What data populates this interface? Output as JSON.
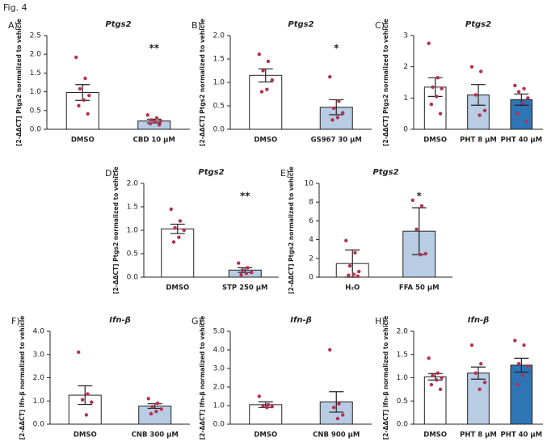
{
  "title": "Fig. 4",
  "chart_data": [
    {
      "type": "bar",
      "panel": "A)",
      "title": "Ptgs2",
      "ylabel": "[2-ΔΔCT] Ptgs2 normalized to vehicle",
      "annotation": "**",
      "categories": [
        "DMSO",
        "CBD 10 µM"
      ],
      "values": [
        0.98,
        0.22
      ],
      "errors": [
        0.21,
        0.05
      ],
      "colors": [
        "#ffffff",
        "#b8cce4"
      ],
      "points": [
        [
          1.92,
          1.36,
          1.08,
          0.9,
          0.78,
          0.63,
          0.41
        ],
        [
          0.38,
          0.3,
          0.25,
          0.22,
          0.2,
          0.15,
          0.12
        ]
      ],
      "ylim": [
        0,
        2.5
      ],
      "yticks": [
        {
          "value": 0,
          "label": "0.0"
        },
        {
          "value": 0.5,
          "label": "0.5"
        },
        {
          "value": 1,
          "label": "1.0"
        },
        {
          "value": 1.5,
          "label": "1.5"
        },
        {
          "value": 2,
          "label": "2.0"
        },
        {
          "value": 2.5,
          "label": "2.5"
        }
      ]
    },
    {
      "type": "bar",
      "panel": "B)",
      "title": "Ptgs2",
      "ylabel": "[2-ΔΔCT] Ptgs2 normalized to vehicle",
      "annotation": "*",
      "categories": [
        "DMSO",
        "GS967 30 µM"
      ],
      "values": [
        1.15,
        0.47
      ],
      "errors": [
        0.14,
        0.16
      ],
      "colors": [
        "#ffffff",
        "#b8cce4"
      ],
      "points": [
        [
          1.6,
          1.45,
          1.25,
          1.05,
          0.85,
          0.8
        ],
        [
          1.12,
          0.6,
          0.45,
          0.35,
          0.25,
          0.2
        ]
      ],
      "ylim": [
        0,
        2
      ],
      "yticks": [
        {
          "value": 0,
          "label": "0.0"
        },
        {
          "value": 0.5,
          "label": "0.5"
        },
        {
          "value": 1,
          "label": "1.0"
        },
        {
          "value": 1.5,
          "label": "1.5"
        },
        {
          "value": 2,
          "label": "2.0"
        }
      ]
    },
    {
      "type": "bar",
      "panel": "C)",
      "title": "Ptgs2",
      "ylabel": "[2-ΔΔCT] Ptgs2 normalized to vehicle",
      "categories": [
        "DMSO",
        "PHT 8 µM",
        "PHT 40 µM"
      ],
      "values": [
        1.35,
        1.1,
        0.95
      ],
      "errors": [
        0.3,
        0.33,
        0.18
      ],
      "colors": [
        "#ffffff",
        "#b8cce4",
        "#2e75b6"
      ],
      "points": [
        [
          2.75,
          1.65,
          1.35,
          1.3,
          1.05,
          0.8,
          0.5
        ],
        [
          2.0,
          1.85,
          1.1,
          0.6,
          0.45
        ],
        [
          1.4,
          1.3,
          1.2,
          1.0,
          0.85,
          0.5,
          0.25
        ]
      ],
      "ylim": [
        0,
        3
      ],
      "yticks": [
        0,
        1,
        2,
        3
      ]
    },
    {
      "type": "bar",
      "panel": "D)",
      "title": "Ptgs2",
      "ylabel": "[2-ΔΔCT] Ptgs2 normalized to vehicle",
      "annotation": "**",
      "categories": [
        "DMSO",
        "STP 250 µM"
      ],
      "values": [
        1.03,
        0.15
      ],
      "errors": [
        0.1,
        0.05
      ],
      "colors": [
        "#ffffff",
        "#b8cce4"
      ],
      "points": [
        [
          1.45,
          1.2,
          1.05,
          1.0,
          0.85,
          0.75
        ],
        [
          0.3,
          0.2,
          0.15,
          0.1,
          0.08,
          0.05
        ]
      ],
      "ylim": [
        0,
        2
      ],
      "yticks": [
        {
          "value": 0,
          "label": "0.0"
        },
        {
          "value": 0.5,
          "label": "0.5"
        },
        {
          "value": 1,
          "label": "1.0"
        },
        {
          "value": 1.5,
          "label": "1.5"
        },
        {
          "value": 2,
          "label": "2.0"
        }
      ]
    },
    {
      "type": "bar",
      "panel": "E)",
      "title": "Ptgs2",
      "ylabel": "[2-ΔΔCT] Ptgs2 normalized to vehicle",
      "annotation": "*",
      "categories": [
        "H₂O",
        "FFA 50 µM"
      ],
      "values": [
        1.45,
        4.9
      ],
      "errors": [
        1.45,
        2.5
      ],
      "colors": [
        "#ffffff",
        "#b8cce4"
      ],
      "points": [
        [
          3.9,
          2.6,
          1.2,
          0.6,
          0.3,
          0.2,
          0.1
        ],
        [
          8.2,
          7.6,
          5.1,
          2.5,
          2.4
        ]
      ],
      "ylim": [
        0,
        10
      ],
      "yticks": [
        0,
        2,
        4,
        6,
        8,
        10
      ]
    },
    {
      "type": "bar",
      "panel": "F)",
      "title": "Ifn-β",
      "ylabel": "[2-ΔΔCT] Ifn-β normalized to vehicle",
      "categories": [
        "DMSO",
        "CNB 300 µM"
      ],
      "values": [
        1.25,
        0.78
      ],
      "errors": [
        0.4,
        0.1
      ],
      "colors": [
        "#ffffff",
        "#b8cce4"
      ],
      "points": [
        [
          3.1,
          1.3,
          1.05,
          0.95,
          0.4
        ],
        [
          1.1,
          0.9,
          0.75,
          0.65,
          0.55,
          0.45
        ]
      ],
      "ylim": [
        0,
        4
      ],
      "yticks": [
        {
          "value": 0,
          "label": "0.0"
        },
        {
          "value": 1,
          "label": "1.0"
        },
        {
          "value": 2,
          "label": "2.0"
        },
        {
          "value": 3,
          "label": "3.0"
        },
        {
          "value": 4,
          "label": "4.0"
        }
      ]
    },
    {
      "type": "bar",
      "panel": "G)",
      "title": "Ifn-β",
      "ylabel": "[2-ΔΔCT] Ifn-β normalized to vehicle",
      "categories": [
        "DMSO",
        "CNB 900 µM"
      ],
      "values": [
        1.05,
        1.2
      ],
      "errors": [
        0.15,
        0.55
      ],
      "colors": [
        "#ffffff",
        "#b8cce4"
      ],
      "points": [
        [
          1.5,
          1.05,
          1.0,
          0.95,
          0.9
        ],
        [
          4.0,
          1.1,
          0.9,
          0.5,
          0.3
        ]
      ],
      "ylim": [
        0,
        5
      ],
      "yticks": [
        {
          "value": 0,
          "label": "0.0"
        },
        {
          "value": 1,
          "label": "1.0"
        },
        {
          "value": 2,
          "label": "2.0"
        },
        {
          "value": 3,
          "label": "3.0"
        },
        {
          "value": 4,
          "label": "4.0"
        },
        {
          "value": 5,
          "label": "5.0"
        }
      ]
    },
    {
      "type": "bar",
      "panel": "H)",
      "title": "Ifn-β",
      "ylabel": "[2-ΔΔCT] Ifn-β normalized to vehicle",
      "categories": [
        "DMSO",
        "PHT 8 µM",
        "PHT 40 µM"
      ],
      "values": [
        1.02,
        1.1,
        1.27
      ],
      "errors": [
        0.07,
        0.13,
        0.15
      ],
      "colors": [
        "#ffffff",
        "#b8cce4",
        "#2e75b6"
      ],
      "points": [
        [
          1.42,
          1.1,
          1.05,
          1.0,
          0.95,
          0.85,
          0.75
        ],
        [
          1.7,
          1.3,
          1.1,
          0.9,
          0.75
        ],
        [
          1.8,
          1.7,
          1.3,
          1.25,
          1.05,
          0.85
        ]
      ],
      "ylim": [
        0,
        2
      ],
      "yticks": [
        {
          "value": 0,
          "label": "0.0"
        },
        {
          "value": 0.5,
          "label": "0.5"
        },
        {
          "value": 1,
          "label": "1.0"
        },
        {
          "value": 1.5,
          "label": "1.5"
        },
        {
          "value": 2,
          "label": "2.0"
        }
      ]
    }
  ]
}
